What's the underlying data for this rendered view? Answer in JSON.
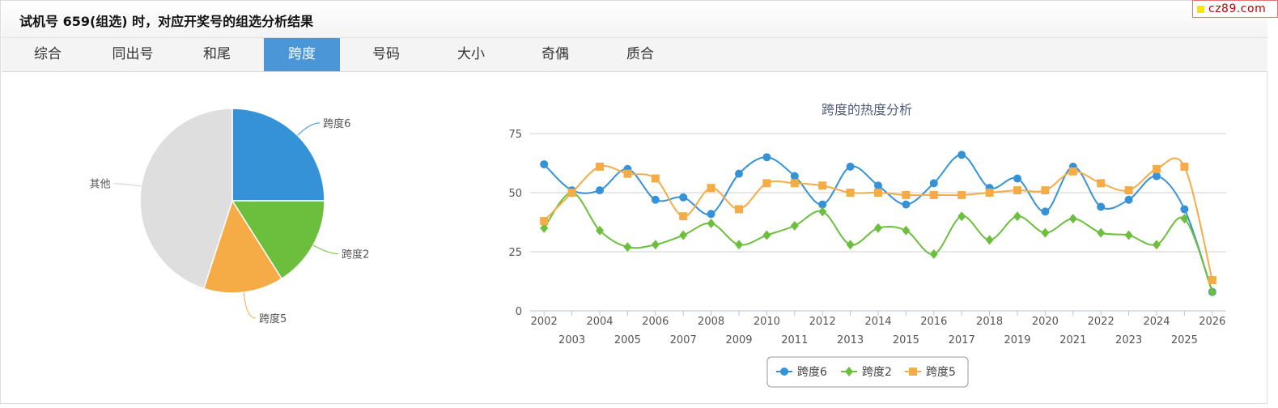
{
  "header": {
    "title": "试机号 659(组选) 时，对应开奖号的组选分析结果",
    "brand": "cz89.com"
  },
  "tabs": [
    {
      "label": "综合",
      "active": false
    },
    {
      "label": "同出号",
      "active": false
    },
    {
      "label": "和尾",
      "active": false
    },
    {
      "label": "跨度",
      "active": true
    },
    {
      "label": "号码",
      "active": false
    },
    {
      "label": "大小",
      "active": false
    },
    {
      "label": "奇偶",
      "active": false
    },
    {
      "label": "质合",
      "active": false
    }
  ],
  "colors": {
    "accent": "#4a96d6",
    "series1": "#3592d6",
    "series2": "#6cbf3c",
    "series3": "#f5ac47",
    "other": "#dedede"
  },
  "chart_data": [
    {
      "type": "pie",
      "slices": [
        {
          "label": "跨度6",
          "value": 25,
          "color": "#3592d6"
        },
        {
          "label": "跨度2",
          "value": 16,
          "color": "#6cbf3c"
        },
        {
          "label": "跨度5",
          "value": 14,
          "color": "#f5ac47"
        },
        {
          "label": "其他",
          "value": 45,
          "color": "#dedede"
        }
      ]
    },
    {
      "type": "line",
      "title": "跨度的热度分析",
      "x": [
        "2002",
        "2003",
        "2004",
        "2005",
        "2006",
        "2007",
        "2008",
        "2009",
        "2010",
        "2011",
        "2012",
        "2013",
        "2014",
        "2015",
        "2016",
        "2017",
        "2018",
        "2019",
        "2020",
        "2021",
        "2022",
        "2023",
        "2024",
        "2025",
        "2026"
      ],
      "ylim": [
        0,
        75
      ],
      "yticks": [
        0,
        25,
        50,
        75
      ],
      "grid": true,
      "legend": "bottom-center",
      "series": [
        {
          "name": "跨度6",
          "color": "#3592d6",
          "marker": "circle",
          "values": [
            62,
            51,
            51,
            60,
            47,
            48,
            41,
            58,
            65,
            57,
            45,
            61,
            53,
            45,
            54,
            66,
            52,
            56,
            42,
            61,
            44,
            47,
            57,
            43,
            8
          ]
        },
        {
          "name": "跨度2",
          "color": "#6cbf3c",
          "marker": "diamond",
          "values": [
            35,
            50,
            34,
            27,
            28,
            32,
            37,
            28,
            32,
            36,
            42,
            28,
            35,
            34,
            24,
            40,
            30,
            40,
            33,
            39,
            33,
            32,
            28,
            39,
            8
          ]
        },
        {
          "name": "跨度5",
          "color": "#f5ac47",
          "marker": "square",
          "values": [
            38,
            50,
            61,
            58,
            56,
            40,
            52,
            43,
            54,
            54,
            53,
            50,
            50,
            49,
            49,
            49,
            50,
            51,
            51,
            59,
            54,
            51,
            60,
            61,
            13
          ]
        }
      ]
    }
  ]
}
